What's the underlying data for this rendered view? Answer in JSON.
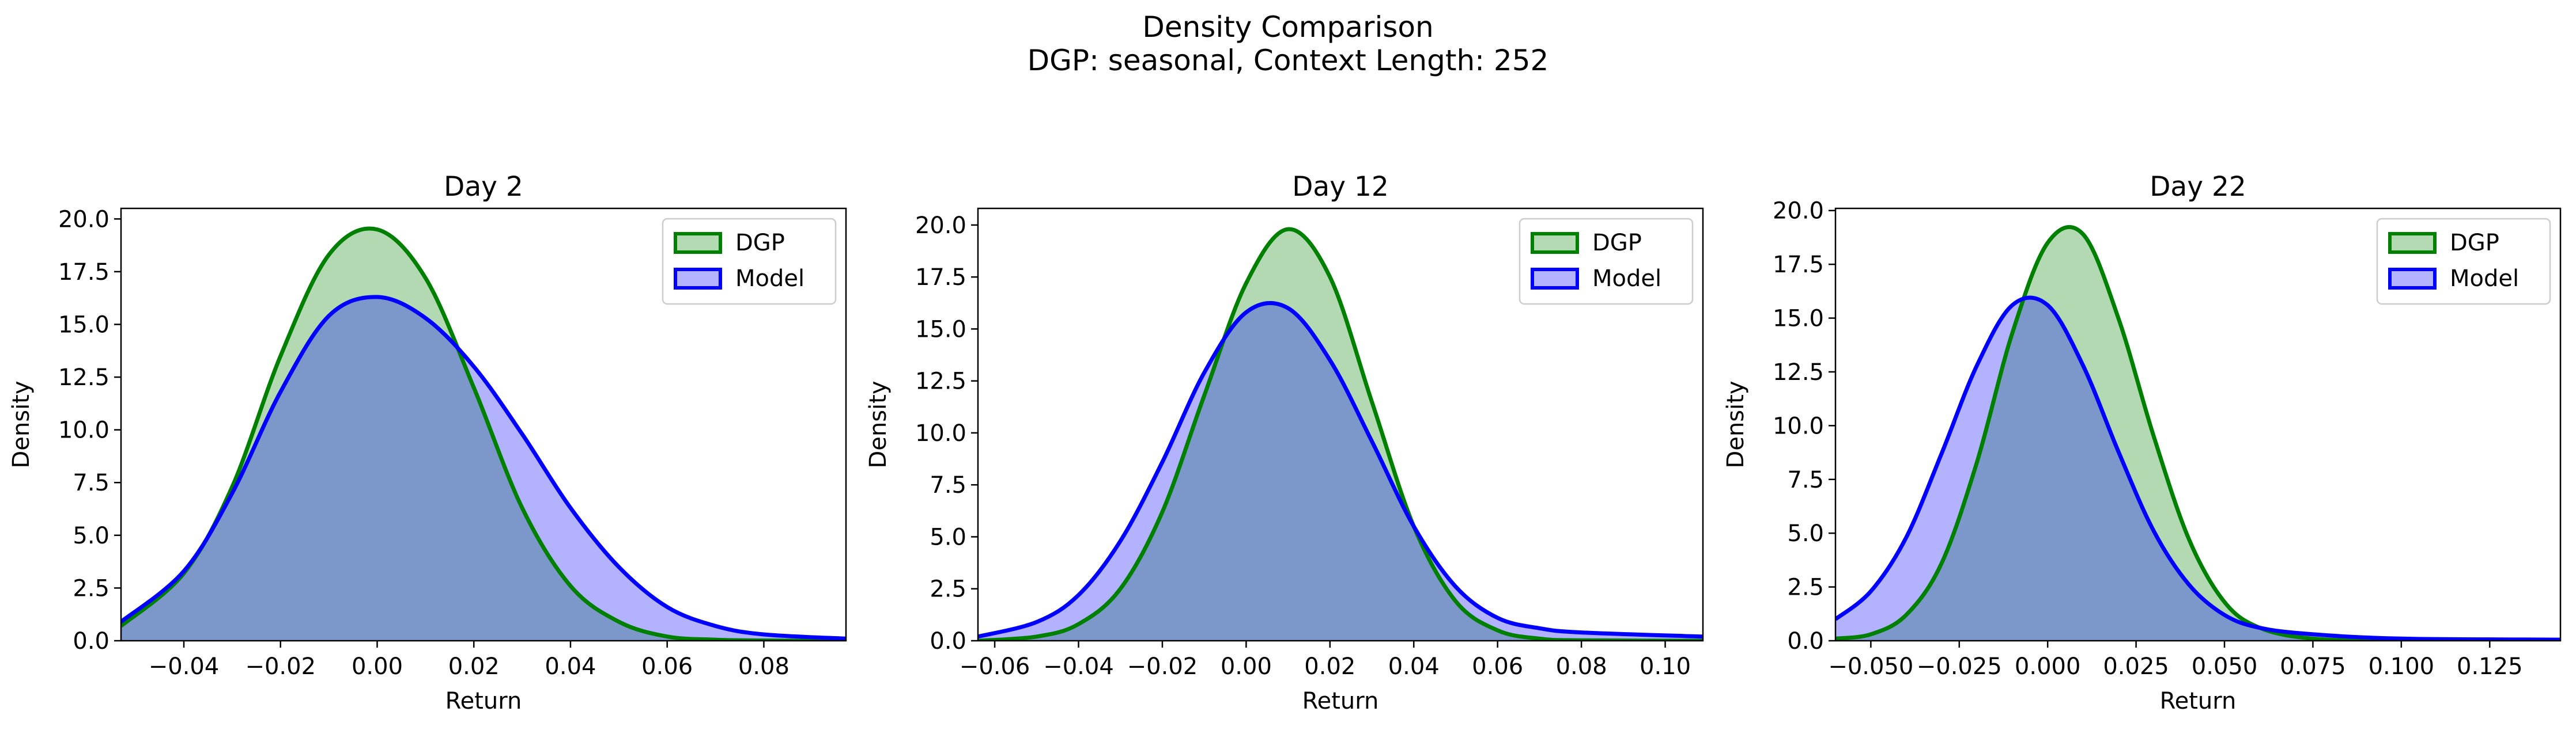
{
  "figure": {
    "title_line1": "Density Comparison",
    "title_line2": "DGP: seasonal, Context Length: 252"
  },
  "colors": {
    "dgp_line": "#008000",
    "dgp_fill": "#b3dab3",
    "model_line": "#0000ff",
    "model_fill": "#b3b3ff",
    "overlap_fill": "#7f99c8"
  },
  "chart_data": [
    {
      "type": "area",
      "title": "Day 2",
      "xlabel": "Return",
      "ylabel": "Density",
      "xlim": [
        -0.053,
        0.097
      ],
      "ylim": [
        0,
        20.5
      ],
      "xticks": [
        -0.04,
        -0.02,
        0.0,
        0.02,
        0.04,
        0.06,
        0.08
      ],
      "xtick_labels": [
        "−0.04",
        "−0.02",
        "0.00",
        "0.02",
        "0.04",
        "0.06",
        "0.08"
      ],
      "yticks": [
        0,
        2.5,
        5,
        7.5,
        10,
        12.5,
        15,
        17.5,
        20
      ],
      "ytick_labels": [
        "0.0",
        "2.5",
        "5.0",
        "7.5",
        "10.0",
        "12.5",
        "15.0",
        "17.5",
        "20.0"
      ],
      "legend": "top-right",
      "series": [
        {
          "name": "DGP",
          "x": [
            -0.053,
            -0.04,
            -0.03,
            -0.02,
            -0.01,
            0.0,
            0.01,
            0.02,
            0.03,
            0.04,
            0.05,
            0.06,
            0.07,
            0.08,
            0.097
          ],
          "y": [
            0.7,
            3.2,
            7.3,
            13.5,
            18.3,
            19.5,
            17.2,
            12.0,
            6.3,
            2.6,
            0.9,
            0.2,
            0.05,
            0.01,
            0.0
          ]
        },
        {
          "name": "Model",
          "x": [
            -0.053,
            -0.04,
            -0.03,
            -0.02,
            -0.01,
            0.0,
            0.01,
            0.02,
            0.03,
            0.04,
            0.05,
            0.06,
            0.07,
            0.08,
            0.097
          ],
          "y": [
            0.9,
            3.3,
            7.0,
            11.8,
            15.4,
            16.3,
            15.3,
            13.0,
            9.8,
            6.3,
            3.5,
            1.6,
            0.7,
            0.3,
            0.1
          ]
        }
      ]
    },
    {
      "type": "area",
      "title": "Day 12",
      "xlabel": "Return",
      "ylabel": "Density",
      "xlim": [
        -0.064,
        0.109
      ],
      "ylim": [
        0,
        20.8
      ],
      "xticks": [
        -0.06,
        -0.04,
        -0.02,
        0.0,
        0.02,
        0.04,
        0.06,
        0.08,
        0.1
      ],
      "xtick_labels": [
        "−0.06",
        "−0.04",
        "−0.02",
        "0.00",
        "0.02",
        "0.04",
        "0.06",
        "0.08",
        "0.10"
      ],
      "yticks": [
        0,
        2.5,
        5,
        7.5,
        10,
        12.5,
        15,
        17.5,
        20
      ],
      "ytick_labels": [
        "0.0",
        "2.5",
        "5.0",
        "7.5",
        "10.0",
        "12.5",
        "15.0",
        "17.5",
        "20.0"
      ],
      "legend": "top-right",
      "series": [
        {
          "name": "DGP",
          "x": [
            -0.064,
            -0.05,
            -0.04,
            -0.03,
            -0.02,
            -0.01,
            0.0,
            0.01,
            0.02,
            0.03,
            0.04,
            0.05,
            0.06,
            0.07,
            0.08,
            0.109
          ],
          "y": [
            0.0,
            0.2,
            0.8,
            2.5,
            6.2,
            11.8,
            17.2,
            19.8,
            17.5,
            11.5,
            5.5,
            1.9,
            0.5,
            0.1,
            0.02,
            0.0
          ]
        },
        {
          "name": "Model",
          "x": [
            -0.064,
            -0.05,
            -0.04,
            -0.03,
            -0.02,
            -0.01,
            0.0,
            0.01,
            0.02,
            0.03,
            0.04,
            0.05,
            0.06,
            0.07,
            0.08,
            0.109
          ],
          "y": [
            0.2,
            0.9,
            2.2,
            4.8,
            8.6,
            12.9,
            15.8,
            16.0,
            13.5,
            9.6,
            5.5,
            2.6,
            1.1,
            0.6,
            0.4,
            0.2
          ]
        }
      ]
    },
    {
      "type": "area",
      "title": "Day 22",
      "xlabel": "Return",
      "ylabel": "Density",
      "xlim": [
        -0.06,
        0.145
      ],
      "ylim": [
        0,
        20.1
      ],
      "xticks": [
        -0.05,
        -0.025,
        0.0,
        0.025,
        0.05,
        0.075,
        0.1,
        0.125
      ],
      "xtick_labels": [
        "−0.050",
        "−0.025",
        "0.000",
        "0.025",
        "0.050",
        "0.075",
        "0.100",
        "0.125"
      ],
      "yticks": [
        0,
        2.5,
        5,
        7.5,
        10,
        12.5,
        15,
        17.5,
        20
      ],
      "ytick_labels": [
        "0.0",
        "2.5",
        "5.0",
        "7.5",
        "10.0",
        "12.5",
        "15.0",
        "17.5",
        "20.0"
      ],
      "legend": "top-right",
      "series": [
        {
          "name": "DGP",
          "x": [
            -0.06,
            -0.05,
            -0.04,
            -0.03,
            -0.02,
            -0.01,
            0.0,
            0.01,
            0.02,
            0.03,
            0.04,
            0.05,
            0.06,
            0.075,
            0.1,
            0.145
          ],
          "y": [
            0.1,
            0.3,
            1.2,
            3.6,
            8.3,
            14.3,
            18.5,
            18.9,
            15.0,
            9.5,
            4.7,
            1.8,
            0.6,
            0.1,
            0.0,
            0.0
          ]
        },
        {
          "name": "Model",
          "x": [
            -0.06,
            -0.05,
            -0.04,
            -0.03,
            -0.02,
            -0.01,
            0.0,
            0.01,
            0.02,
            0.03,
            0.04,
            0.05,
            0.06,
            0.075,
            0.1,
            0.145
          ],
          "y": [
            1.0,
            2.3,
            4.8,
            8.7,
            12.8,
            15.6,
            15.6,
            12.8,
            8.8,
            5.1,
            2.6,
            1.2,
            0.6,
            0.3,
            0.1,
            0.05
          ]
        }
      ]
    }
  ]
}
